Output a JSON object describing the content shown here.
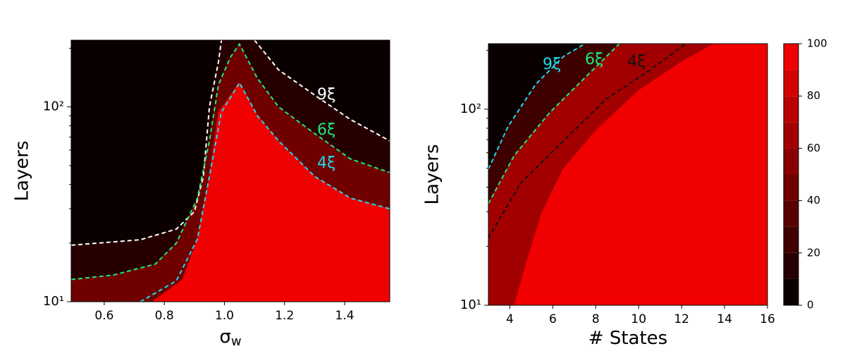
{
  "chart_data": [
    {
      "type": "contour",
      "xlabel": "σ",
      "xlabel_sub": "w",
      "ylabel": "Layers",
      "xlim": [
        0.49,
        1.55
      ],
      "ylim": [
        10,
        220
      ],
      "log_y": true,
      "xticks": [
        0.6,
        0.8,
        {
          "value": 1,
          "label": "1.0"
        },
        1.2,
        1.4
      ],
      "yticks": [
        {
          "value": 10,
          "label": "10¹"
        },
        {
          "value": 100,
          "label": "10²"
        }
      ],
      "minor_yticks": [
        20,
        30,
        40,
        50,
        60,
        70,
        80,
        90,
        200
      ],
      "regions": [
        {
          "level": 5,
          "x": [
            0.49,
            1.55,
            1.55,
            0.49
          ],
          "y": [
            10,
            10,
            220,
            220
          ]
        },
        {
          "level": 15,
          "x": [
            0.49,
            0.72,
            0.84,
            0.9,
            0.93,
            0.95,
            0.98,
            0.99,
            1.1,
            1.18,
            1.3,
            1.42,
            1.55,
            1.55,
            0.49
          ],
          "y": [
            19.5,
            20.8,
            23.6,
            29,
            44,
            100,
            170,
            220,
            220,
            155,
            115,
            86,
            67,
            10,
            10
          ]
        },
        {
          "level": 45,
          "x": [
            0.49,
            0.63,
            0.77,
            0.84,
            0.91,
            0.95,
            0.98,
            1.02,
            1.05,
            1.11,
            1.18,
            1.3,
            1.42,
            1.55,
            1.55,
            0.49
          ],
          "y": [
            13,
            13.7,
            15.6,
            20,
            34,
            67,
            130,
            180,
            210,
            140,
            100,
            73,
            54,
            46,
            10,
            10
          ]
        },
        {
          "level": 95,
          "x": [
            0.76,
            0.86,
            0.91,
            0.95,
            0.98,
            1.05,
            1.11,
            1.18,
            1.3,
            1.42,
            1.55,
            1.55
          ],
          "y": [
            10,
            13,
            21,
            44,
            94,
            133,
            90,
            67,
            44,
            34,
            30,
            10
          ]
        }
      ],
      "series": [
        {
          "name": "9ξ",
          "color": "#ffffff",
          "x": [
            0.49,
            0.72,
            0.84,
            0.9,
            0.93,
            0.95,
            0.98,
            0.99,
            null,
            1.1,
            1.18,
            1.3,
            1.42,
            1.55
          ],
          "y": [
            19.5,
            20.8,
            23.6,
            29,
            44,
            100,
            170,
            220,
            null,
            220,
            155,
            115,
            86,
            67
          ]
        },
        {
          "name": "6ξ",
          "color": "#1ee87a",
          "x": [
            0.49,
            0.63,
            0.77,
            0.84,
            0.91,
            0.95,
            0.98,
            1.02,
            1.05,
            1.11,
            1.18,
            1.3,
            1.42,
            1.55
          ],
          "y": [
            13,
            13.7,
            15.6,
            20,
            34,
            67,
            130,
            180,
            210,
            140,
            100,
            73,
            54,
            46
          ]
        },
        {
          "name": "4ξ",
          "color": "#22d8f0",
          "x": [
            0.72,
            0.84,
            0.91,
            0.95,
            0.99,
            1.05,
            1.11,
            1.18,
            1.3,
            1.42,
            1.55
          ],
          "y": [
            10,
            12.8,
            21,
            44,
            94,
            133,
            90,
            67,
            44,
            34,
            30
          ]
        }
      ]
    },
    {
      "type": "contour",
      "xlabel": "# States",
      "ylabel": "Layers",
      "xlim": [
        3,
        16
      ],
      "ylim": [
        10,
        216
      ],
      "log_y": true,
      "xticks": [
        4,
        6,
        8,
        10,
        12,
        14,
        16
      ],
      "yticks": [
        {
          "value": 10,
          "label": "10¹"
        },
        {
          "value": 100,
          "label": "10²"
        }
      ],
      "minor_yticks": [
        20,
        30,
        40,
        50,
        60,
        70,
        80,
        90,
        200
      ],
      "regions": [
        {
          "level": 5,
          "x": [
            3,
            16,
            16,
            3
          ],
          "y": [
            10,
            10,
            216,
            216
          ]
        },
        {
          "level": 25,
          "x": [
            3,
            3.9,
            5.2,
            6.5,
            7.5,
            16,
            16,
            3
          ],
          "y": [
            49.5,
            81,
            134,
            186,
            216,
            216,
            10,
            10
          ]
        },
        {
          "level": 65,
          "x": [
            3,
            4.2,
            5.85,
            7.5,
            9.1,
            16,
            16,
            3
          ],
          "y": [
            33,
            58,
            96,
            145,
            216,
            216,
            10,
            10
          ]
        },
        {
          "level": 95,
          "x": [
            4.2,
            4.8,
            5.5,
            6.5,
            8,
            10,
            12,
            13.5,
            16,
            16
          ],
          "y": [
            10,
            17,
            30,
            50,
            78,
            125,
            175,
            216,
            216,
            10
          ]
        }
      ],
      "series": [
        {
          "name": "9ξ",
          "color": "#22d8f0",
          "x": [
            3,
            3.9,
            5.2,
            6.5,
            7.5
          ],
          "y": [
            49.5,
            81,
            134,
            186,
            216
          ]
        },
        {
          "name": "6ξ",
          "color": "#1ee87a",
          "x": [
            3,
            4.2,
            5.85,
            7.5,
            9.1
          ],
          "y": [
            33,
            58,
            96,
            145,
            216
          ]
        },
        {
          "name": "4ξ",
          "color": "#111111",
          "x": [
            3,
            4.5,
            6.5,
            8.5,
            10.5,
            12.2
          ],
          "y": [
            22,
            42,
            69,
            113,
            158,
            216
          ]
        }
      ],
      "colorbar": {
        "levels": [
          0,
          10,
          20,
          30,
          40,
          50,
          60,
          70,
          80,
          90,
          100
        ],
        "colors": [
          "#0a0000",
          "#260000",
          "#3f0000",
          "#580000",
          "#700000",
          "#890000",
          "#a20000",
          "#bb0000",
          "#d40000",
          "#f00000"
        ],
        "ticks": [
          0,
          20,
          40,
          60,
          80,
          100
        ]
      }
    }
  ]
}
